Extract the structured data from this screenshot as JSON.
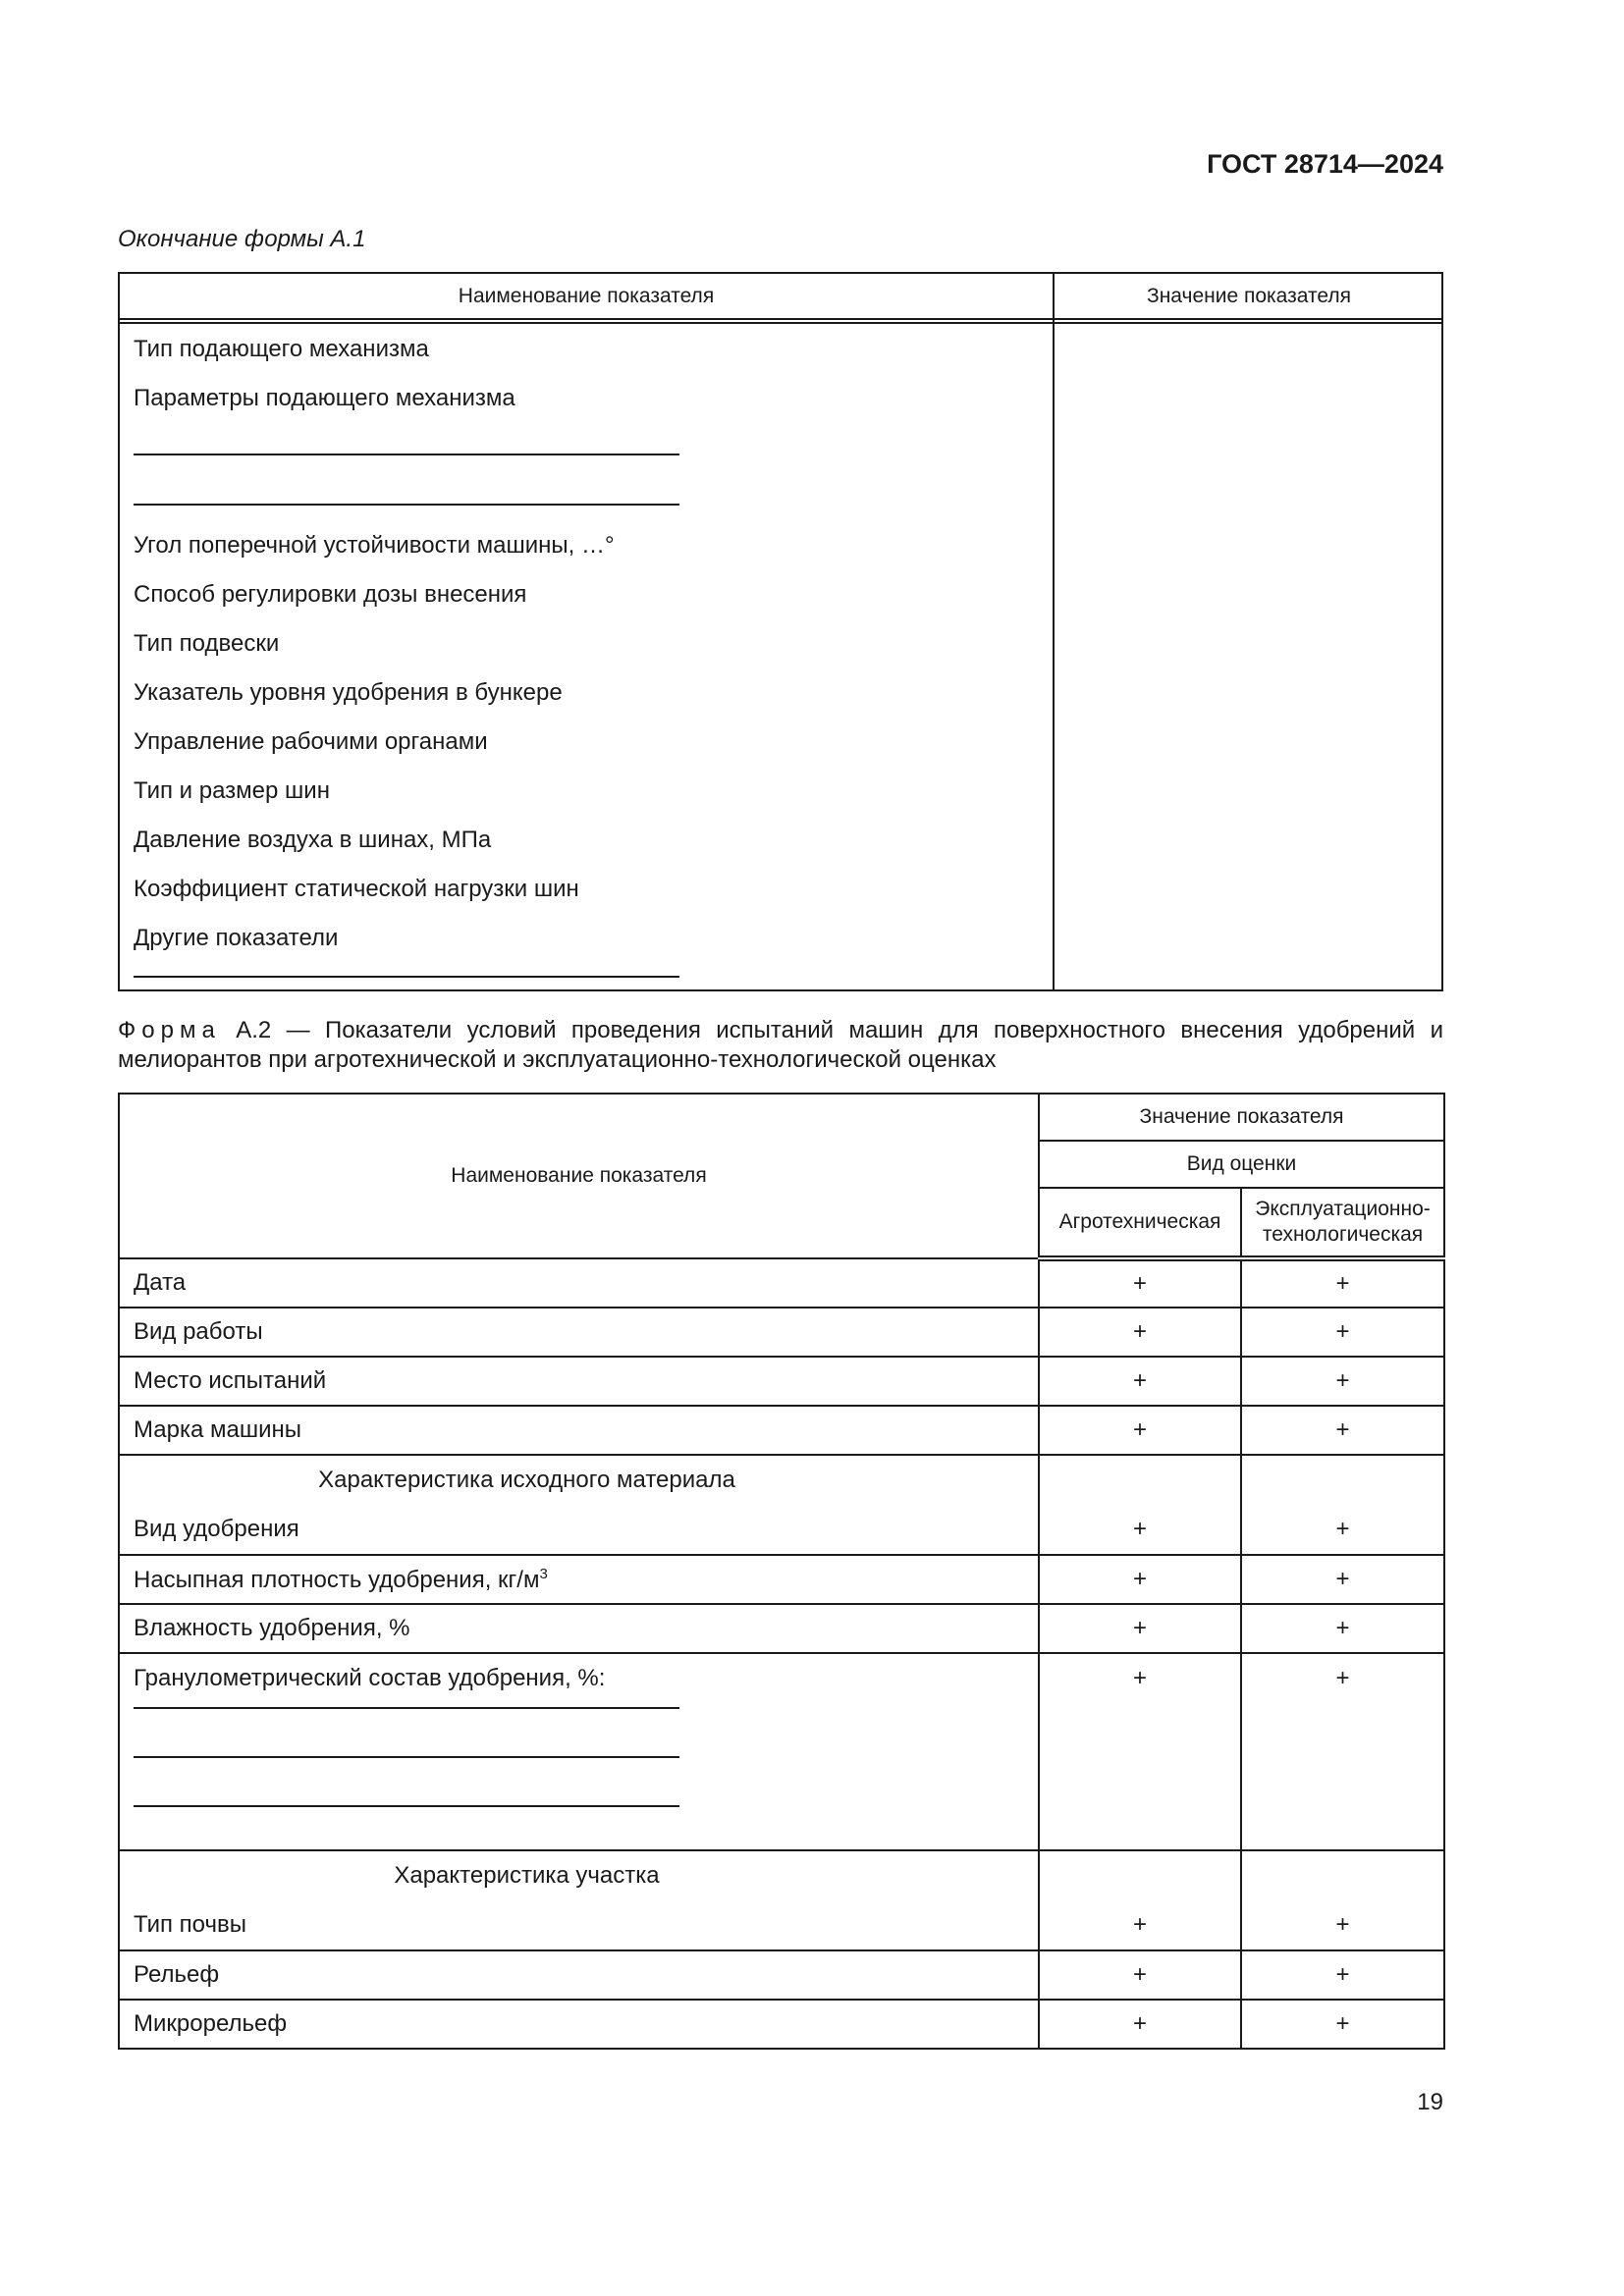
{
  "header": {
    "doc_code": "ГОСТ 28714—2024"
  },
  "form_a1": {
    "continuation": "Окончание формы А.1",
    "columns": [
      "Наименование показателя",
      "Значение показателя"
    ],
    "rows": [
      "Тип подающего механизма",
      "Параметры подающего механизма",
      "Угол поперечной устойчивости машины, …°",
      "Способ регулировки дозы внесения",
      "Тип подвески",
      "Указатель уровня удобрения в бункере",
      "Управление рабочими органами",
      "Тип и размер шин",
      "Давление воздуха в шинах, МПа",
      "Коэффициент статической нагрузки шин",
      "Другие показатели"
    ]
  },
  "form_a2": {
    "caption_label": "Форма",
    "caption_text": "А.2 — Показатели условий проведения испытаний машин для поверхностного внесения удобрений и мелиорантов при агротехнической и эксплуатационно-технологической оценках",
    "header": {
      "name": "Наименование показателя",
      "value": "Значение показателя",
      "assessment": "Вид оценки",
      "agro": "Агротехническая",
      "expl": "Эксплуатационно-технологическая"
    },
    "rows": [
      {
        "name": "Дата",
        "agro": "+",
        "expl": "+"
      },
      {
        "name": "Вид работы",
        "agro": "+",
        "expl": "+"
      },
      {
        "name": "Место испытаний",
        "agro": "+",
        "expl": "+"
      },
      {
        "name": "Марка машины",
        "agro": "+",
        "expl": "+"
      }
    ],
    "section1": {
      "title": "Характеристика исходного материала",
      "row": {
        "name": "Вид удобрения",
        "agro": "+",
        "expl": "+"
      }
    },
    "rows2": [
      {
        "name": "Насыпная плотность удобрения, кг/м",
        "sup": "3",
        "agro": "+",
        "expl": "+"
      },
      {
        "name": "Влажность удобрения, %",
        "agro": "+",
        "expl": "+"
      },
      {
        "name": "Гранулометрический состав удобрения, %:",
        "agro": "+",
        "expl": "+"
      }
    ],
    "section2": {
      "title": "Характеристика участка",
      "row": {
        "name": "Тип почвы",
        "agro": "+",
        "expl": "+"
      }
    },
    "rows3": [
      {
        "name": "Рельеф",
        "agro": "+",
        "expl": "+"
      },
      {
        "name": "Микрорельеф",
        "agro": "+",
        "expl": "+"
      }
    ]
  },
  "page_number": "19"
}
